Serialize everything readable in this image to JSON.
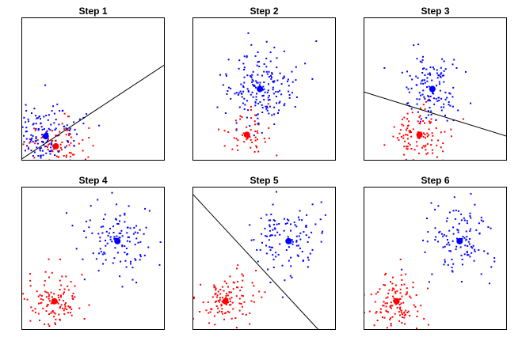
{
  "figure": {
    "colors": {
      "cluster_a": "#ff0000",
      "cluster_b": "#0000ff",
      "boundary": "#000000",
      "frame": "#000000",
      "background": "#ffffff"
    }
  },
  "chart_data": [
    {
      "type": "scatter",
      "title": "Step 1",
      "xlim": [
        0,
        10
      ],
      "ylim": [
        0,
        10
      ],
      "axes_visible": false,
      "grid": false,
      "clusters": [
        {
          "color": "#ff0000",
          "n_points": 90,
          "spread": 1.0
        },
        {
          "color": "#0000ff",
          "n_points": 150,
          "spread": 1.2
        }
      ],
      "centroids": [
        {
          "color": "#ff0000",
          "x": 2.4,
          "y": 1.0
        },
        {
          "color": "#0000ff",
          "x": 1.7,
          "y": 1.7
        }
      ],
      "decision_boundary": {
        "x1": 0.0,
        "y1": 0.1,
        "x2": 10.0,
        "y2": 6.7
      }
    },
    {
      "type": "scatter",
      "title": "Step 2",
      "xlim": [
        0,
        10
      ],
      "ylim": [
        0,
        10
      ],
      "axes_visible": false,
      "grid": false,
      "clusters": [
        {
          "color": "#ff0000",
          "n_points": 50,
          "spread": 0.9
        },
        {
          "color": "#0000ff",
          "n_points": 190,
          "spread": 1.2
        }
      ],
      "centroids": [
        {
          "color": "#ff0000",
          "x": 3.8,
          "y": 1.8
        },
        {
          "color": "#0000ff",
          "x": 4.7,
          "y": 5.0
        }
      ],
      "decision_boundary": null
    },
    {
      "type": "scatter",
      "title": "Step 3",
      "xlim": [
        0,
        10
      ],
      "ylim": [
        0,
        10
      ],
      "axes_visible": false,
      "grid": false,
      "clusters": [
        {
          "color": "#ff0000",
          "n_points": 110,
          "spread": 1.0
        },
        {
          "color": "#0000ff",
          "n_points": 130,
          "spread": 1.1
        }
      ],
      "centroids": [
        {
          "color": "#ff0000",
          "x": 3.9,
          "y": 1.8
        },
        {
          "color": "#0000ff",
          "x": 4.8,
          "y": 5.0
        }
      ],
      "decision_boundary": {
        "x1": 0.0,
        "y1": 4.8,
        "x2": 10.0,
        "y2": 1.7
      }
    },
    {
      "type": "scatter",
      "title": "Step 4",
      "xlim": [
        0,
        10
      ],
      "ylim": [
        0,
        10
      ],
      "axes_visible": false,
      "grid": false,
      "clusters": [
        {
          "color": "#ff0000",
          "n_points": 120,
          "spread": 1.0
        },
        {
          "color": "#0000ff",
          "n_points": 120,
          "spread": 1.2
        }
      ],
      "centroids": [
        {
          "color": "#ff0000",
          "x": 2.3,
          "y": 2.0
        },
        {
          "color": "#0000ff",
          "x": 6.7,
          "y": 6.2
        }
      ],
      "decision_boundary": null
    },
    {
      "type": "scatter",
      "title": "Step 5",
      "xlim": [
        0,
        10
      ],
      "ylim": [
        0,
        10
      ],
      "axes_visible": false,
      "grid": false,
      "clusters": [
        {
          "color": "#ff0000",
          "n_points": 120,
          "spread": 1.0
        },
        {
          "color": "#0000ff",
          "n_points": 120,
          "spread": 1.2
        }
      ],
      "centroids": [
        {
          "color": "#ff0000",
          "x": 2.3,
          "y": 2.0
        },
        {
          "color": "#0000ff",
          "x": 6.7,
          "y": 6.2
        }
      ],
      "decision_boundary": {
        "x1": 0.0,
        "y1": 9.5,
        "x2": 8.8,
        "y2": 0.0
      }
    },
    {
      "type": "scatter",
      "title": "Step 6",
      "xlim": [
        0,
        10
      ],
      "ylim": [
        0,
        10
      ],
      "axes_visible": false,
      "grid": false,
      "clusters": [
        {
          "color": "#ff0000",
          "n_points": 120,
          "spread": 1.0
        },
        {
          "color": "#0000ff",
          "n_points": 120,
          "spread": 1.2
        }
      ],
      "centroids": [
        {
          "color": "#ff0000",
          "x": 2.3,
          "y": 2.0
        },
        {
          "color": "#0000ff",
          "x": 6.7,
          "y": 6.2
        }
      ],
      "decision_boundary": null
    }
  ]
}
